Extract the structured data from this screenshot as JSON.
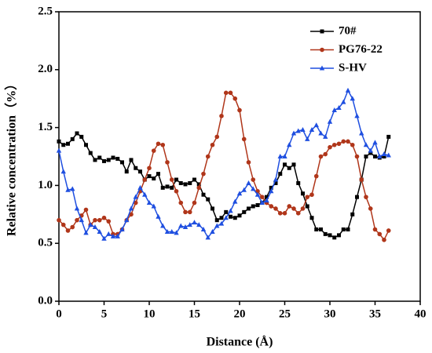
{
  "chart_data": {
    "type": "line",
    "xlabel": "Distance (Å)",
    "ylabel": "Relative concentration（%）",
    "xlim": [
      0,
      40
    ],
    "xticks": [
      0,
      5,
      10,
      15,
      20,
      25,
      30,
      35,
      40
    ],
    "ylim": [
      0,
      2.5
    ],
    "yticks": [
      {
        "value": 0,
        "label": "0.0"
      },
      0.5,
      {
        "value": 1,
        "label": "1.0"
      },
      1.5,
      {
        "value": 2,
        "label": "2.0"
      },
      2.5
    ],
    "legend": "upper right",
    "x": [
      0,
      0.5,
      1,
      1.5,
      2,
      2.5,
      3,
      3.5,
      4,
      4.5,
      5,
      5.5,
      6,
      6.5,
      7,
      7.5,
      8,
      8.5,
      9,
      9.5,
      10,
      10.5,
      11,
      11.5,
      12,
      12.5,
      13,
      13.5,
      14,
      14.5,
      15,
      15.5,
      16,
      16.5,
      17,
      17.5,
      18,
      18.5,
      19,
      19.5,
      20,
      20.5,
      21,
      21.5,
      22,
      22.5,
      23,
      23.5,
      24,
      24.5,
      25,
      25.5,
      26,
      26.5,
      27,
      27.5,
      28,
      28.5,
      29,
      29.5,
      30,
      30.5,
      31,
      31.5,
      32,
      32.5,
      33,
      33.5,
      34,
      34.5,
      35,
      35.5,
      36,
      36.5
    ],
    "series": [
      {
        "name": "70#",
        "color": "#000000",
        "marker": "square",
        "values": [
          1.38,
          1.35,
          1.36,
          1.4,
          1.45,
          1.42,
          1.35,
          1.28,
          1.22,
          1.24,
          1.21,
          1.22,
          1.24,
          1.23,
          1.2,
          1.12,
          1.22,
          1.15,
          1.12,
          1.05,
          1.08,
          1.06,
          1.1,
          0.98,
          0.99,
          0.98,
          1.05,
          1.02,
          1.01,
          1.02,
          1.05,
          1.01,
          0.92,
          0.88,
          0.8,
          0.7,
          0.72,
          0.77,
          0.73,
          0.72,
          0.74,
          0.77,
          0.8,
          0.82,
          0.83,
          0.85,
          0.9,
          0.98,
          1.02,
          1.1,
          1.18,
          1.15,
          1.18,
          1.02,
          0.93,
          0.82,
          0.72,
          0.62,
          0.62,
          0.58,
          0.57,
          0.55,
          0.57,
          0.62,
          0.62,
          0.75,
          0.9,
          1.05,
          1.25,
          1.28,
          1.25,
          1.24,
          1.25,
          1.42
        ]
      },
      {
        "name": "PG76-22",
        "color": "#b0361a",
        "marker": "circle",
        "values": [
          0.7,
          0.66,
          0.61,
          0.64,
          0.7,
          0.74,
          0.79,
          0.66,
          0.7,
          0.7,
          0.72,
          0.69,
          0.58,
          0.58,
          0.62,
          0.7,
          0.75,
          0.85,
          0.95,
          1.05,
          1.15,
          1.3,
          1.36,
          1.35,
          1.2,
          1.05,
          0.95,
          0.85,
          0.77,
          0.77,
          0.85,
          0.98,
          1.1,
          1.25,
          1.35,
          1.42,
          1.6,
          1.8,
          1.8,
          1.75,
          1.65,
          1.4,
          1.2,
          1.05,
          0.95,
          0.9,
          0.85,
          0.82,
          0.8,
          0.76,
          0.76,
          0.82,
          0.8,
          0.76,
          0.8,
          0.9,
          0.92,
          1.08,
          1.25,
          1.27,
          1.33,
          1.35,
          1.36,
          1.38,
          1.38,
          1.35,
          1.25,
          1.05,
          0.9,
          0.8,
          0.62,
          0.58,
          0.53,
          0.61
        ]
      },
      {
        "name": "S-HV",
        "color": "#1f4fe0",
        "marker": "triangle",
        "values": [
          1.3,
          1.12,
          0.96,
          0.97,
          0.8,
          0.7,
          0.59,
          0.66,
          0.64,
          0.6,
          0.54,
          0.58,
          0.56,
          0.56,
          0.62,
          0.7,
          0.8,
          0.9,
          0.98,
          0.92,
          0.85,
          0.82,
          0.73,
          0.65,
          0.6,
          0.6,
          0.59,
          0.65,
          0.64,
          0.66,
          0.68,
          0.66,
          0.62,
          0.55,
          0.6,
          0.65,
          0.67,
          0.72,
          0.78,
          0.86,
          0.93,
          0.96,
          1.02,
          0.97,
          0.92,
          0.85,
          0.87,
          0.95,
          1.05,
          1.25,
          1.25,
          1.35,
          1.45,
          1.47,
          1.48,
          1.4,
          1.48,
          1.52,
          1.45,
          1.42,
          1.55,
          1.65,
          1.67,
          1.72,
          1.82,
          1.75,
          1.6,
          1.45,
          1.35,
          1.3,
          1.37,
          1.25,
          1.27,
          1.26
        ]
      }
    ]
  }
}
